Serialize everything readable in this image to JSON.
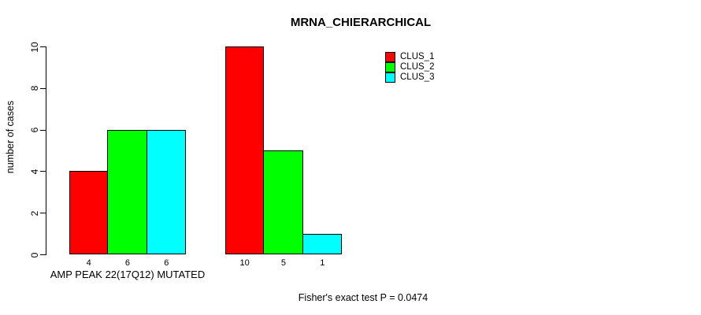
{
  "title": "MRNA_CHIERARCHICAL",
  "chart_data": {
    "type": "bar",
    "title": "MRNA_CHIERARCHICAL",
    "xlabel": "",
    "ylabel": "number of cases",
    "ylim": [
      0,
      10
    ],
    "yticks": [
      0,
      2,
      4,
      6,
      8,
      10
    ],
    "grid": false,
    "legend": {
      "position": "top-right",
      "entries": [
        {
          "label": "CLUS_1",
          "color": "#ff0000"
        },
        {
          "label": "CLUS_2",
          "color": "#00ff00"
        },
        {
          "label": "CLUS_3",
          "color": "#00ffff"
        }
      ]
    },
    "groups": [
      {
        "label": "AMP PEAK 22(17Q12) MUTATED",
        "values": [
          4,
          6,
          6
        ]
      },
      {
        "label": "",
        "values": [
          10,
          5,
          1
        ]
      }
    ],
    "bar_value_labels_shown": true,
    "annotation": "Fisher's exact test P = 0.0474"
  }
}
